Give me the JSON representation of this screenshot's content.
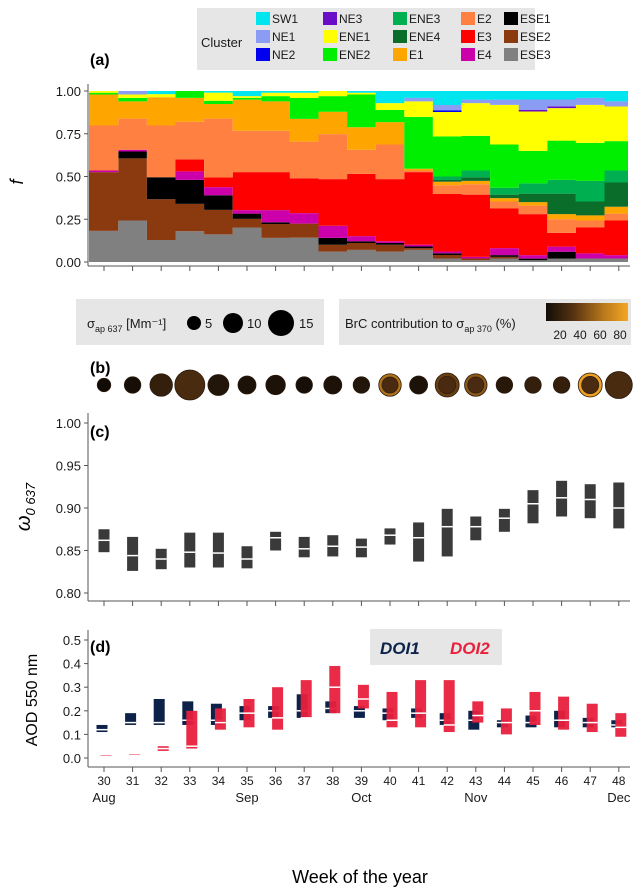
{
  "chart_data": [
    {
      "type": "area",
      "panel": "(a)",
      "ylabel": "f",
      "ylim": [
        0,
        1
      ],
      "yticks": [
        "0.00",
        "0.25",
        "0.50",
        "0.75",
        "1.00"
      ],
      "x": [
        30,
        31,
        32,
        33,
        34,
        35,
        36,
        37,
        38,
        39,
        40,
        41,
        42,
        43,
        44,
        45,
        46,
        47,
        48
      ],
      "legend": {
        "title": "Cluster",
        "entries": [
          {
            "name": "SW1",
            "color": "#00e5ee"
          },
          {
            "name": "NE1",
            "color": "#8b9cf4"
          },
          {
            "name": "NE2",
            "color": "#0000ee"
          },
          {
            "name": "NE3",
            "color": "#6a0dc7"
          },
          {
            "name": "ENE1",
            "color": "#ffff00"
          },
          {
            "name": "ENE2",
            "color": "#00ee00"
          },
          {
            "name": "ENE3",
            "color": "#00b050"
          },
          {
            "name": "ENE4",
            "color": "#0a6e2a"
          },
          {
            "name": "E1",
            "color": "#ffa500"
          },
          {
            "name": "E2",
            "color": "#ff8040"
          },
          {
            "name": "E3",
            "color": "#ff0000"
          },
          {
            "name": "E4",
            "color": "#cc00aa"
          },
          {
            "name": "ESE1",
            "color": "#000000"
          },
          {
            "name": "ESE2",
            "color": "#8b3a0f"
          },
          {
            "name": "ESE3",
            "color": "#808080"
          }
        ]
      },
      "series": [
        {
          "name": "ESE3",
          "values": [
            0.18,
            0.24,
            0.14,
            0.18,
            0.17,
            0.2,
            0.14,
            0.14,
            0.06,
            0.07,
            0.06,
            0.07,
            0.02,
            0.01,
            0.02,
            0.01,
            0.02,
            0.02,
            0.02
          ]
        },
        {
          "name": "ESE2",
          "values": [
            0.34,
            0.36,
            0.26,
            0.16,
            0.15,
            0.05,
            0.08,
            0.08,
            0.04,
            0.04,
            0.04,
            0.01,
            0.02,
            0.01,
            0.01,
            0.0,
            0.0,
            0.0,
            0.0
          ]
        },
        {
          "name": "ESE1",
          "values": [
            0.0,
            0.04,
            0.14,
            0.14,
            0.09,
            0.03,
            0.01,
            0.0,
            0.04,
            0.01,
            0.01,
            0.01,
            0.01,
            0.0,
            0.01,
            0.01,
            0.04,
            0.0,
            0.0
          ]
        },
        {
          "name": "E4",
          "values": [
            0.01,
            0.01,
            0.0,
            0.05,
            0.05,
            0.02,
            0.07,
            0.06,
            0.07,
            0.03,
            0.01,
            0.01,
            0.01,
            0.01,
            0.04,
            0.02,
            0.03,
            0.03,
            0.02
          ]
        },
        {
          "name": "E3",
          "values": [
            0.0,
            0.0,
            0.0,
            0.07,
            0.06,
            0.22,
            0.22,
            0.2,
            0.27,
            0.36,
            0.36,
            0.42,
            0.33,
            0.36,
            0.23,
            0.24,
            0.08,
            0.15,
            0.2
          ]
        },
        {
          "name": "E2",
          "values": [
            0.26,
            0.18,
            0.33,
            0.22,
            0.36,
            0.24,
            0.24,
            0.21,
            0.26,
            0.14,
            0.2,
            0.01,
            0.05,
            0.06,
            0.04,
            0.05,
            0.08,
            0.04,
            0.04
          ]
        },
        {
          "name": "E1",
          "values": [
            0.18,
            0.1,
            0.18,
            0.14,
            0.09,
            0.18,
            0.17,
            0.13,
            0.13,
            0.13,
            0.13,
            0.01,
            0.02,
            0.02,
            0.02,
            0.02,
            0.03,
            0.03,
            0.04
          ]
        },
        {
          "name": "ENE4",
          "values": [
            0.0,
            0.0,
            0.0,
            0.0,
            0.0,
            0.0,
            0.0,
            0.0,
            0.0,
            0.0,
            0.0,
            0.0,
            0.01,
            0.02,
            0.02,
            0.05,
            0.12,
            0.08,
            0.14
          ]
        },
        {
          "name": "ENE3",
          "values": [
            0.0,
            0.0,
            0.0,
            0.0,
            0.0,
            0.0,
            0.0,
            0.0,
            0.0,
            0.0,
            0.0,
            0.0,
            0.02,
            0.04,
            0.04,
            0.06,
            0.08,
            0.12,
            0.07
          ]
        },
        {
          "name": "ENE2",
          "values": [
            0.01,
            0.02,
            0.0,
            0.04,
            0.02,
            0.01,
            0.03,
            0.12,
            0.09,
            0.19,
            0.07,
            0.3,
            0.23,
            0.2,
            0.25,
            0.19,
            0.23,
            0.22,
            0.17
          ]
        },
        {
          "name": "ENE1",
          "values": [
            0.01,
            0.02,
            0.02,
            0.0,
            0.05,
            0.01,
            0.02,
            0.03,
            0.03,
            0.01,
            0.04,
            0.09,
            0.14,
            0.19,
            0.23,
            0.23,
            0.19,
            0.22,
            0.2
          ]
        },
        {
          "name": "NE3",
          "values": [
            0.0,
            0.0,
            0.0,
            0.0,
            0.0,
            0.0,
            0.0,
            0.0,
            0.0,
            0.0,
            0.0,
            0.0,
            0.0,
            0.0,
            0.0,
            0.01,
            0.01,
            0.0,
            0.0
          ]
        },
        {
          "name": "NE2",
          "values": [
            0.0,
            0.0,
            0.0,
            0.0,
            0.0,
            0.0,
            0.0,
            0.0,
            0.0,
            0.0,
            0.0,
            0.0,
            0.01,
            0.0,
            0.0,
            0.0,
            0.0,
            0.0,
            0.0
          ]
        },
        {
          "name": "NE1",
          "values": [
            0.0,
            0.02,
            0.0,
            0.0,
            0.0,
            0.0,
            0.0,
            0.0,
            0.0,
            0.0,
            0.0,
            0.02,
            0.03,
            0.02,
            0.03,
            0.06,
            0.04,
            0.04,
            0.03
          ]
        },
        {
          "name": "SW1",
          "values": [
            0.0,
            0.0,
            0.02,
            0.0,
            0.01,
            0.03,
            0.01,
            0.01,
            0.0,
            0.01,
            0.07,
            0.04,
            0.08,
            0.05,
            0.05,
            0.05,
            0.05,
            0.04,
            0.06
          ]
        }
      ]
    },
    {
      "type": "scatter",
      "panel": "(b)",
      "size_legend": {
        "label_prefix": "σ",
        "label_sub": "ap 637",
        "label_unit": " [Mm⁻¹]",
        "sizes": [
          "5",
          "10",
          "15"
        ]
      },
      "color_legend": {
        "label_prefix": "BrC contribution to σ",
        "label_sub": "ap 370",
        "label_unit": " (%)",
        "ticks": [
          "20",
          "40",
          "60",
          "80"
        ]
      },
      "x": [
        30,
        31,
        32,
        33,
        34,
        35,
        36,
        37,
        38,
        39,
        40,
        41,
        42,
        43,
        44,
        45,
        46,
        47,
        48
      ],
      "sigma_ap_637": [
        5,
        7,
        11,
        16,
        10,
        8,
        9,
        7,
        8,
        7,
        11,
        8,
        12,
        11,
        7,
        7,
        7,
        12,
        14
      ],
      "brc_contribution_pct": [
        10,
        12,
        22,
        30,
        16,
        14,
        14,
        12,
        14,
        16,
        60,
        14,
        40,
        50,
        18,
        22,
        22,
        82,
        30
      ]
    },
    {
      "type": "box",
      "panel": "(c)",
      "ylabel": "ω",
      "ylabel_sub": "0 637",
      "ylim": [
        0.79,
        1.0
      ],
      "yticks": [
        "0.80",
        "0.85",
        "0.90",
        "0.95",
        "1.00"
      ],
      "x": [
        30,
        31,
        32,
        33,
        34,
        35,
        36,
        37,
        38,
        39,
        40,
        41,
        42,
        43,
        44,
        45,
        46,
        47,
        48
      ],
      "q1": [
        0.848,
        0.826,
        0.828,
        0.83,
        0.83,
        0.829,
        0.85,
        0.842,
        0.843,
        0.842,
        0.857,
        0.837,
        0.843,
        0.862,
        0.872,
        0.882,
        0.89,
        0.888,
        0.876
      ],
      "median": [
        0.862,
        0.844,
        0.84,
        0.848,
        0.847,
        0.84,
        0.865,
        0.852,
        0.855,
        0.854,
        0.868,
        0.865,
        0.878,
        0.878,
        0.888,
        0.905,
        0.912,
        0.91,
        0.9
      ],
      "q3": [
        0.875,
        0.866,
        0.852,
        0.871,
        0.871,
        0.855,
        0.872,
        0.866,
        0.868,
        0.864,
        0.876,
        0.883,
        0.899,
        0.89,
        0.899,
        0.921,
        0.932,
        0.928,
        0.93
      ]
    },
    {
      "type": "box",
      "panel": "(d)",
      "ylabel": "AOD 550 nm",
      "xlabel": "Week of the year",
      "ylim": [
        -0.02,
        0.51
      ],
      "yticks": [
        "0.0",
        "0.1",
        "0.2",
        "0.3",
        "0.4",
        "0.5"
      ],
      "xticks": [
        "30",
        "31",
        "32",
        "33",
        "34",
        "35",
        "36",
        "37",
        "38",
        "39",
        "40",
        "41",
        "42",
        "43",
        "44",
        "45",
        "46",
        "47",
        "48"
      ],
      "month_labels": [
        {
          "label": "Aug",
          "week": 30
        },
        {
          "label": "Sep",
          "week": 35
        },
        {
          "label": "Oct",
          "week": 39
        },
        {
          "label": "Nov",
          "week": 43
        },
        {
          "label": "Dec",
          "week": 48
        }
      ],
      "series": [
        {
          "name": "DOI1",
          "color": "#0d2249",
          "q1": [
            0.11,
            0.14,
            0.14,
            0.14,
            0.14,
            0.16,
            0.17,
            0.17,
            0.19,
            0.17,
            0.16,
            0.17,
            0.14,
            0.12,
            0.13,
            0.13,
            0.13,
            0.13,
            0.13
          ],
          "median": [
            0.12,
            0.15,
            0.15,
            0.16,
            0.16,
            0.19,
            0.2,
            0.2,
            0.21,
            0.2,
            0.19,
            0.19,
            0.16,
            0.16,
            0.15,
            0.15,
            0.16,
            0.15,
            0.14
          ],
          "q3": [
            0.14,
            0.19,
            0.25,
            0.24,
            0.23,
            0.22,
            0.22,
            0.27,
            0.24,
            0.22,
            0.21,
            0.21,
            0.19,
            0.2,
            0.16,
            0.18,
            0.2,
            0.17,
            0.16
          ]
        },
        {
          "name": "DOI2",
          "color": "#e8203d",
          "q1": [
            0.015,
            0.017,
            0.03,
            0.04,
            0.12,
            0.13,
            0.12,
            0.17,
            0.19,
            0.21,
            0.13,
            0.13,
            0.11,
            0.15,
            0.1,
            0.14,
            0.12,
            0.11,
            0.09
          ],
          "median": [
            0.015,
            0.018,
            0.04,
            0.05,
            0.15,
            0.19,
            0.17,
            0.17,
            0.3,
            0.25,
            0.16,
            0.19,
            0.14,
            0.18,
            0.15,
            0.2,
            0.16,
            0.15,
            0.13
          ],
          "q3": [
            0.016,
            0.019,
            0.05,
            0.2,
            0.21,
            0.25,
            0.3,
            0.33,
            0.39,
            0.31,
            0.28,
            0.33,
            0.33,
            0.24,
            0.21,
            0.28,
            0.26,
            0.23,
            0.19
          ]
        }
      ]
    }
  ]
}
